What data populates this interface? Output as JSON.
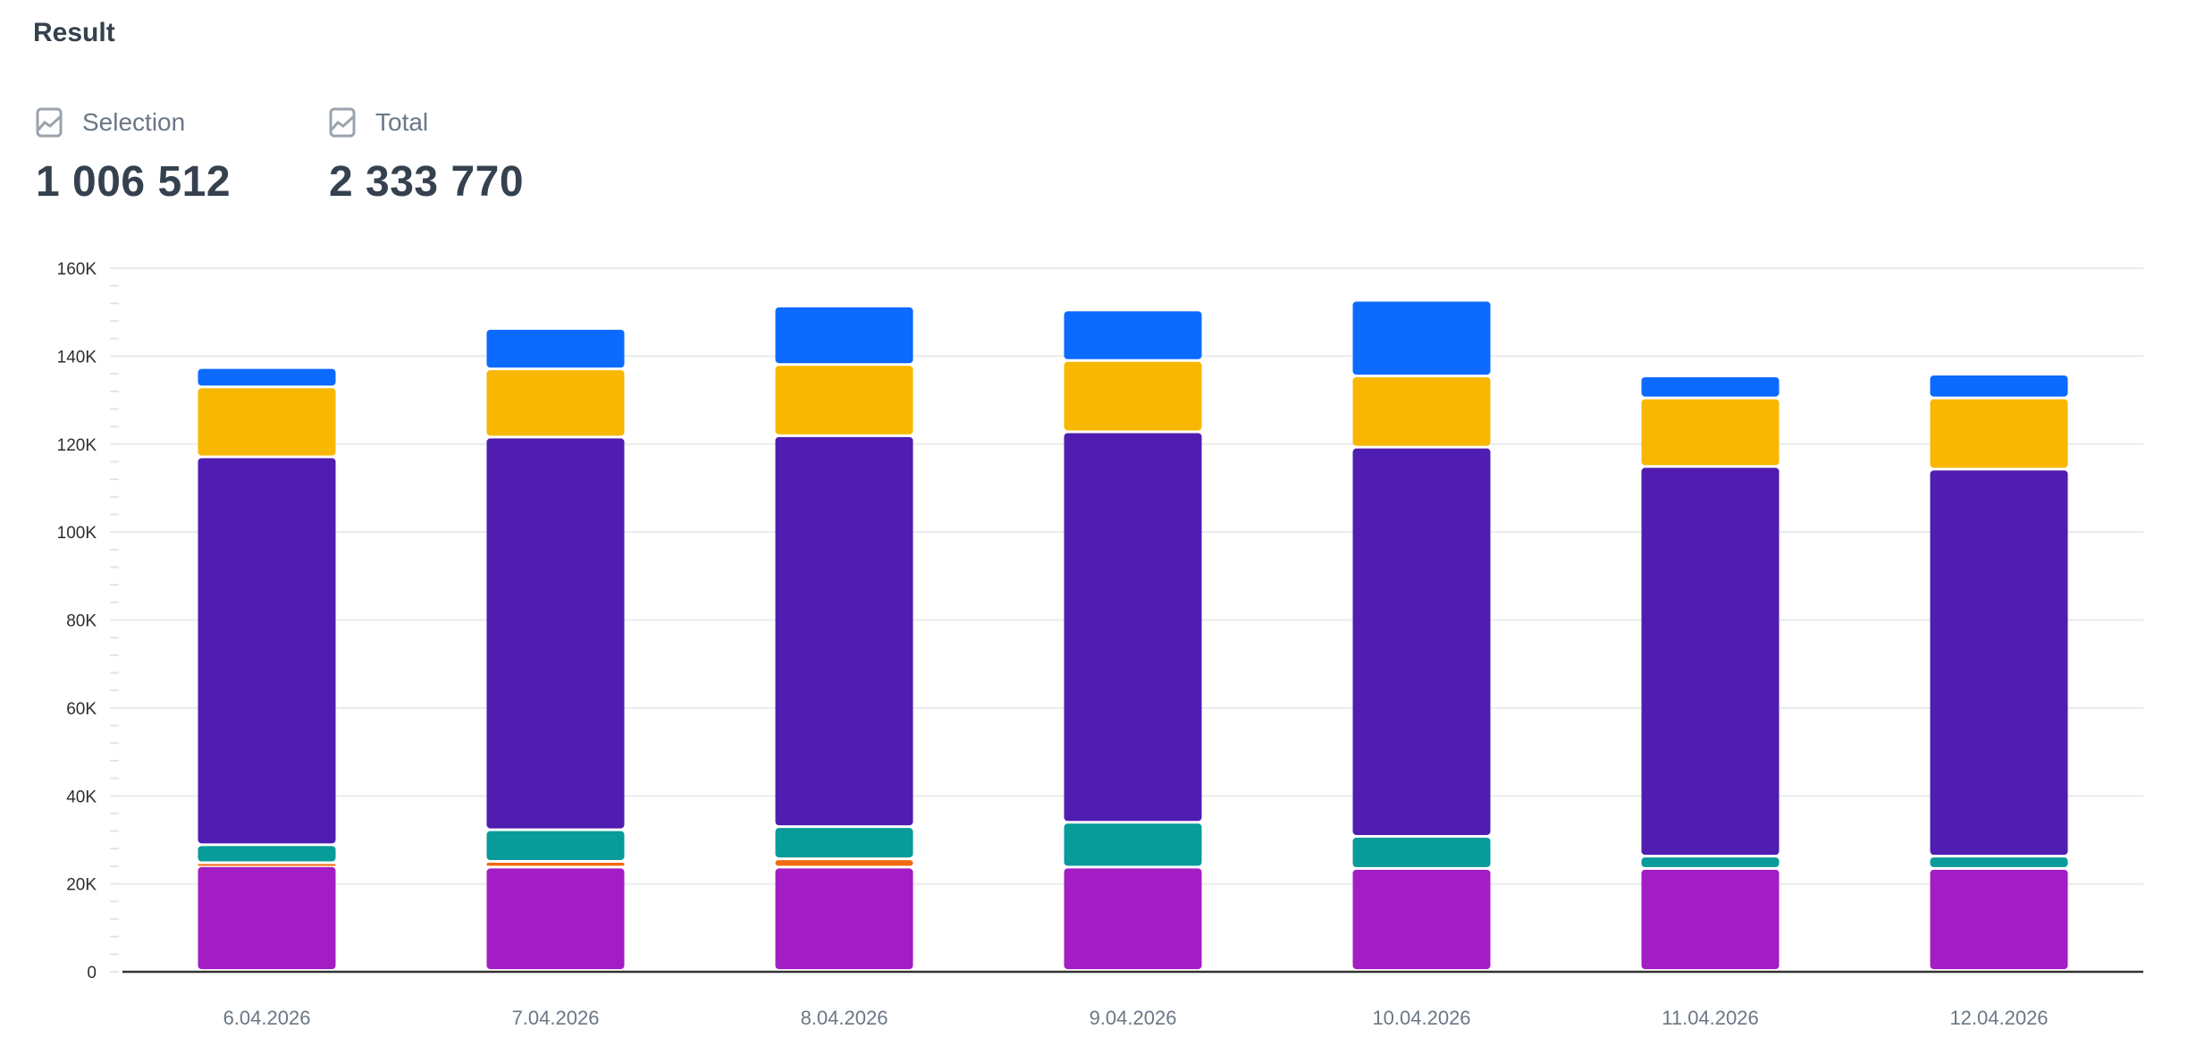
{
  "header": {
    "title": "Result"
  },
  "stats": [
    {
      "label": "Selection",
      "value": "1 006 512",
      "icon": "line-chart-icon"
    },
    {
      "label": "Total",
      "value": "2 333 770",
      "icon": "line-chart-icon"
    }
  ],
  "chart_data": {
    "type": "bar",
    "stacked": true,
    "categories": [
      "6.04.2026",
      "7.04.2026",
      "8.04.2026",
      "9.04.2026",
      "10.04.2026",
      "11.04.2026",
      "12.04.2026"
    ],
    "ylim": [
      0,
      160000
    ],
    "yticks": [
      0,
      20000,
      40000,
      60000,
      80000,
      100000,
      120000,
      140000,
      160000
    ],
    "ytick_labels": [
      "0",
      "20K",
      "40K",
      "60K",
      "80K",
      "100K",
      "120K",
      "140K",
      "160K"
    ],
    "grid": true,
    "series": [
      {
        "color": "#a31dc4",
        "values": [
          23800,
          23500,
          23500,
          23500,
          23200,
          23200,
          23200
        ]
      },
      {
        "color": "#f06a0f",
        "values": [
          700,
          1300,
          1900,
          0,
          0,
          0,
          0
        ]
      },
      {
        "color": "#079b9a",
        "values": [
          4100,
          7200,
          7300,
          10200,
          7300,
          2800,
          2800
        ]
      },
      {
        "color": "#4f1db0",
        "values": [
          88200,
          89300,
          88900,
          88800,
          88500,
          88600,
          88000
        ]
      },
      {
        "color": "#f8b700",
        "values": [
          15900,
          15500,
          16200,
          16200,
          16200,
          15600,
          16200
        ]
      },
      {
        "color": "#0d6aff",
        "values": [
          4400,
          9200,
          13300,
          11500,
          17200,
          5000,
          5400
        ]
      }
    ]
  }
}
